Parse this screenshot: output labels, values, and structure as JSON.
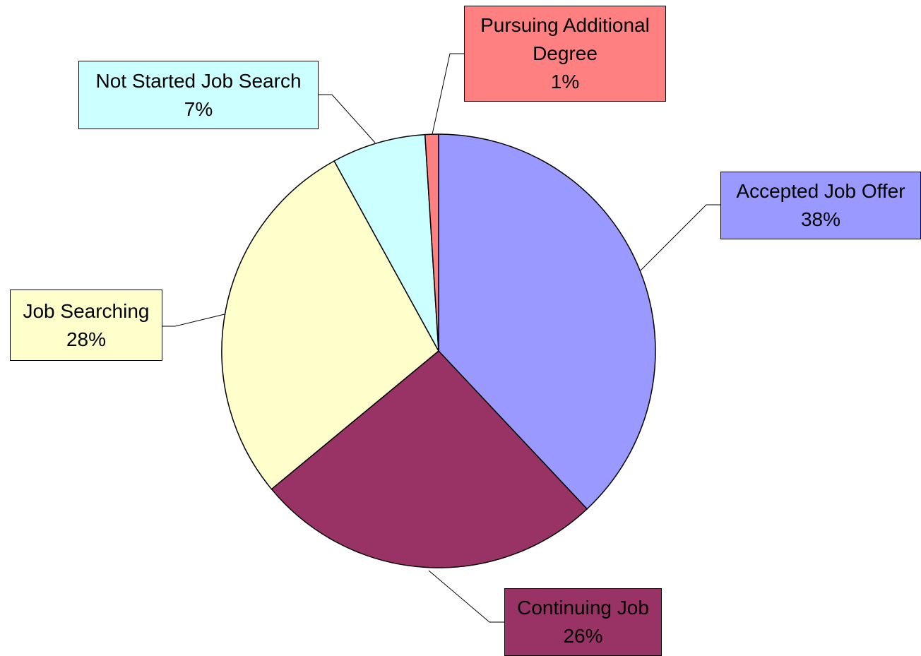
{
  "chart_data": {
    "type": "pie",
    "categories": [
      "Accepted Job Offer",
      "Continuing Job",
      "Job Searching",
      "Not Started Job Search",
      "Pursuing Additional Degree"
    ],
    "values": [
      38,
      26,
      28,
      7,
      1
    ],
    "value_labels": [
      "38%",
      "26%",
      "28%",
      "7%",
      "1%"
    ],
    "colors": [
      "#9999ff",
      "#993366",
      "#ffffcc",
      "#ccffff",
      "#ff8080"
    ]
  }
}
